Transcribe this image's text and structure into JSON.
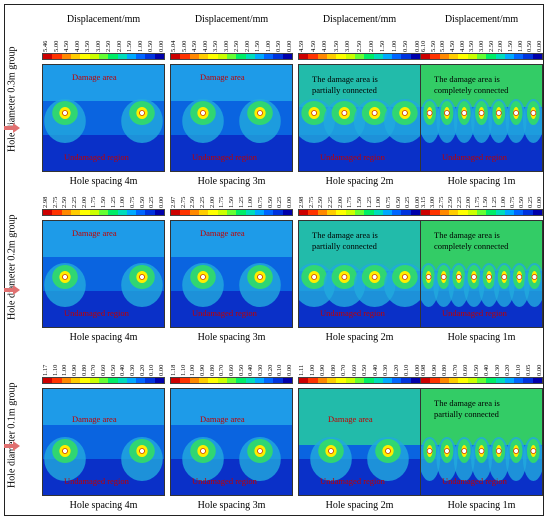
{
  "colorbar_colors": [
    "#cc0000",
    "#ff3300",
    "#ff8800",
    "#ffcc00",
    "#ffff00",
    "#ccff00",
    "#66ff33",
    "#00ee66",
    "#00ddbb",
    "#00aaff",
    "#0066ff",
    "#0033dd",
    "#0000aa"
  ],
  "rows": [
    {
      "group_label": "Hole diameter 0.3m group",
      "panels": [
        {
          "title": "Displacement/mm",
          "ticks": [
            "5.46",
            "5.00",
            "4.50",
            "4.00",
            "3.50",
            "3.00",
            "2.50",
            "2.00",
            "1.50",
            "1.00",
            "0.50",
            "0.00"
          ],
          "annotation": "Damage area",
          "bottom_label": "Undamaged region",
          "caption": "Hole spacing 4m"
        },
        {
          "title": "Displacement/mm",
          "ticks": [
            "5.04",
            "5.00",
            "4.50",
            "4.00",
            "3.50",
            "3.00",
            "2.50",
            "2.00",
            "1.50",
            "1.00",
            "0.50",
            "0.00"
          ],
          "annotation": "Damage area",
          "bottom_label": "Undamaged region",
          "caption": "Hole spacing 3m"
        },
        {
          "title": "Displacement/mm",
          "ticks": [
            "4.59",
            "4.50",
            "4.00",
            "3.50",
            "3.00",
            "2.50",
            "2.00",
            "1.50",
            "1.00",
            "0.50",
            "0.00"
          ],
          "annotation": "The damage area is partially connected",
          "annotation_lines": [
            "The damage area is",
            "partially connected"
          ],
          "bottom_label": "Undamaged region",
          "caption": "Hole spacing 2m"
        },
        {
          "title": "Displacement/mm",
          "ticks": [
            "6.10",
            "5.50",
            "5.00",
            "4.50",
            "4.00",
            "3.50",
            "3.00",
            "2.50",
            "2.00",
            "1.50",
            "1.00",
            "0.50",
            "0.00"
          ],
          "annotation": "The damage area is completely connected",
          "annotation_lines": [
            "The damage area is",
            "completely connected"
          ],
          "bottom_label": "Undamaged region",
          "caption": "Hole spacing 1m"
        }
      ]
    },
    {
      "group_label": "Hole diameter 0.2m group",
      "panels": [
        {
          "title": "",
          "ticks": [
            "2.98",
            "2.75",
            "2.50",
            "2.25",
            "2.00",
            "1.75",
            "1.50",
            "1.25",
            "1.00",
            "0.75",
            "0.50",
            "0.25",
            "0.00"
          ],
          "annotation": "Damage area",
          "bottom_label": "Undamaged region",
          "caption": "Hole spacing 4m"
        },
        {
          "title": "",
          "ticks": [
            "2.97",
            "2.75",
            "2.50",
            "2.25",
            "2.00",
            "1.75",
            "1.50",
            "1.25",
            "1.00",
            "0.75",
            "0.50",
            "0.25",
            "0.00"
          ],
          "annotation": "Damage area",
          "bottom_label": "Undamaged region",
          "caption": "Hole spacing 3m"
        },
        {
          "title": "",
          "ticks": [
            "2.98",
            "2.75",
            "2.50",
            "2.25",
            "2.00",
            "1.75",
            "1.50",
            "1.25",
            "1.00",
            "0.75",
            "0.50",
            "0.25",
            "0.00"
          ],
          "annotation": "The damage area is partially connected",
          "annotation_lines": [
            "The damage area is",
            "partially connected"
          ],
          "bottom_label": "Undamaged region",
          "caption": "Hole spacing 2m"
        },
        {
          "title": "",
          "ticks": [
            "3.15",
            "3.00",
            "2.75",
            "2.50",
            "2.25",
            "2.00",
            "1.75",
            "1.50",
            "1.25",
            "1.00",
            "0.75",
            "0.50",
            "0.25",
            "0.00"
          ],
          "annotation": "The damage area is completely connected",
          "annotation_lines": [
            "The damage area is",
            "completely connected"
          ],
          "bottom_label": "Undamaged region",
          "caption": "Hole spacing 1m"
        }
      ]
    },
    {
      "group_label": "Hole diameter 0.1m group",
      "panels": [
        {
          "title": "",
          "ticks": [
            "1.17",
            "1.10",
            "1.00",
            "0.90",
            "0.80",
            "0.70",
            "0.60",
            "0.50",
            "0.40",
            "0.30",
            "0.20",
            "0.10",
            "0.00"
          ],
          "annotation": "Damage area",
          "bottom_label": "Undamaged region",
          "caption": "Hole spacing 4m"
        },
        {
          "title": "",
          "ticks": [
            "1.18",
            "1.10",
            "1.00",
            "0.90",
            "0.80",
            "0.70",
            "0.60",
            "0.50",
            "0.40",
            "0.30",
            "0.20",
            "0.10",
            "0.00"
          ],
          "annotation": "Damage area",
          "bottom_label": "Undamaged region",
          "caption": "Hole spacing 3m"
        },
        {
          "title": "",
          "ticks": [
            "1.11",
            "1.00",
            "0.90",
            "0.80",
            "0.70",
            "0.60",
            "0.50",
            "0.40",
            "0.30",
            "0.20",
            "0.10",
            "0.00"
          ],
          "annotation": "Damage area",
          "bottom_label": "Undamaged region",
          "caption": "Hole spacing 2m"
        },
        {
          "title": "",
          "ticks": [
            "0.98",
            "0.90",
            "0.80",
            "0.70",
            "0.60",
            "0.50",
            "0.40",
            "0.30",
            "0.20",
            "0.10",
            "0.05",
            "0.00"
          ],
          "annotation": "The damage area is partially connected",
          "annotation_lines": [
            "The damage area is",
            "partially connected"
          ],
          "bottom_label": "Undamaged region",
          "caption": "Hole spacing 1m"
        }
      ]
    }
  ]
}
